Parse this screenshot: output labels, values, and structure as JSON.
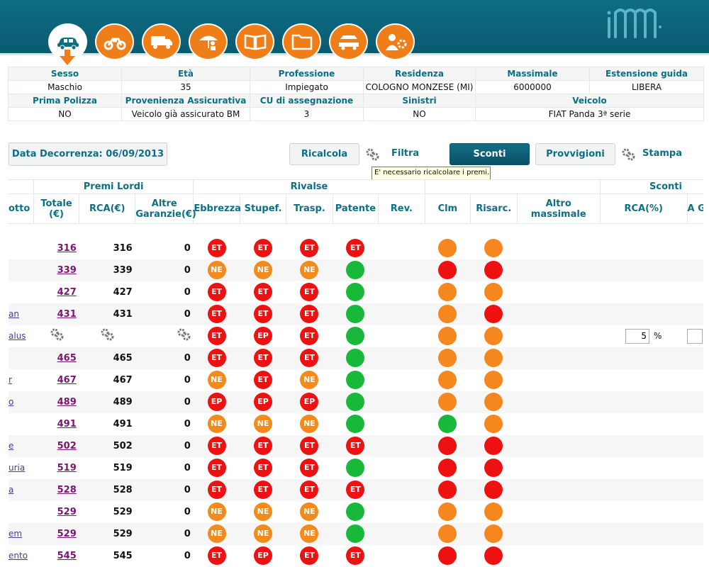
{
  "colors": {
    "teal": "#0d6f84",
    "nav_orange": "#ef7d18",
    "ET": "#ee1111",
    "EP": "#ee1111",
    "NE": "#f38a1c",
    "red": "#ee1111",
    "orange": "#f6871f",
    "green": "#18b93a"
  },
  "nav": {
    "icons": [
      "car-icon",
      "motorcycle-icon",
      "truck-icon",
      "umbrella-person-icon",
      "book-icon",
      "folder-icon",
      "vehicles-icon",
      "person-settings-icon"
    ],
    "active_index": 0
  },
  "info": {
    "row1_headers": [
      "Sesso",
      "Età",
      "Professione",
      "Residenza",
      "Massimale",
      "Estensione guida"
    ],
    "row1_values": [
      "Maschio",
      "35",
      "Impiegato",
      "COLOGNO MONZESE (MI)",
      "6000000",
      "LIBERA"
    ],
    "row2_headers": [
      "Prima Polizza",
      "Provenienza Assicurativa",
      "CU di assegnazione",
      "Sinistri",
      "Veicolo"
    ],
    "row2_values": [
      "NO",
      "Veicolo già assicurato BM",
      "3",
      "NO",
      "FIAT Panda 3ª serie"
    ]
  },
  "toolbar": {
    "date_label": "Data Decorrenza: 06/09/2013",
    "ricalcola": "Ricalcola",
    "filtra": "Filtra",
    "sconti": "Sconti",
    "provvigioni": "Provvigioni",
    "stampa": "Stampa",
    "tooltip": "E' necessario ricalcolare i premi..."
  },
  "grid": {
    "group_premi": "Premi Lordi",
    "group_rivalse": "Rivalse",
    "group_sconti": "Sconti",
    "h_prodotto": "otto",
    "h_totale": "Totale (€)",
    "h_rca": "RCA(€)",
    "h_altre": "Altre Garanzie(€)",
    "h_ebbrezza": "Ebbrezza",
    "h_stupef": "Stupef.",
    "h_trasp": "Trasp.",
    "h_patente": "Patente",
    "h_rev": "Rev.",
    "h_clm": "Clm",
    "h_risarc": "Risarc.",
    "h_altro": "Altro massimale",
    "h_sconto_rca": "RCA(%)",
    "h_sconto_altre": "A Garan",
    "pct_value": "5",
    "pct_sign": "%",
    "rows": [
      {
        "name": "",
        "tot": "316",
        "rca": "316",
        "alt": "0",
        "e": "ET",
        "s": "ET",
        "t": "ET",
        "p": "ET",
        "clm": "orange",
        "ris": "orange",
        "gear": false
      },
      {
        "name": "",
        "tot": "339",
        "rca": "339",
        "alt": "0",
        "e": "NE",
        "s": "NE",
        "t": "NE",
        "p": "green",
        "clm": "red",
        "ris": "red",
        "gear": false
      },
      {
        "name": "",
        "tot": "427",
        "rca": "427",
        "alt": "0",
        "e": "ET",
        "s": "ET",
        "t": "ET",
        "p": "green",
        "clm": "orange",
        "ris": "orange",
        "gear": false
      },
      {
        "name": "an",
        "tot": "431",
        "rca": "431",
        "alt": "0",
        "e": "ET",
        "s": "ET",
        "t": "ET",
        "p": "green",
        "clm": "orange",
        "ris": "red",
        "gear": false
      },
      {
        "name": "alus",
        "tot": "",
        "rca": "",
        "alt": "",
        "e": "ET",
        "s": "EP",
        "t": "ET",
        "p": "green",
        "clm": "orange",
        "ris": "orange",
        "gear": true
      },
      {
        "name": "",
        "tot": "465",
        "rca": "465",
        "alt": "0",
        "e": "ET",
        "s": "ET",
        "t": "ET",
        "p": "green",
        "clm": "orange",
        "ris": "orange",
        "gear": false
      },
      {
        "name": "r",
        "tot": "467",
        "rca": "467",
        "alt": "0",
        "e": "NE",
        "s": "ET",
        "t": "NE",
        "p": "green",
        "clm": "orange",
        "ris": "orange",
        "gear": false
      },
      {
        "name": "o",
        "tot": "489",
        "rca": "489",
        "alt": "0",
        "e": "EP",
        "s": "EP",
        "t": "EP",
        "p": "green",
        "clm": "orange",
        "ris": "orange",
        "gear": false
      },
      {
        "name": "",
        "tot": "491",
        "rca": "491",
        "alt": "0",
        "e": "NE",
        "s": "NE",
        "t": "NE",
        "p": "green",
        "clm": "green",
        "ris": "orange",
        "gear": false
      },
      {
        "name": "e",
        "tot": "502",
        "rca": "502",
        "alt": "0",
        "e": "ET",
        "s": "ET",
        "t": "ET",
        "p": "ET",
        "clm": "red",
        "ris": "red",
        "gear": false
      },
      {
        "name": "uria",
        "tot": "519",
        "rca": "519",
        "alt": "0",
        "e": "ET",
        "s": "ET",
        "t": "ET",
        "p": "green",
        "clm": "red",
        "ris": "red",
        "gear": false
      },
      {
        "name": "a",
        "tot": "528",
        "rca": "528",
        "alt": "0",
        "e": "ET",
        "s": "ET",
        "t": "ET",
        "p": "ET",
        "clm": "red",
        "ris": "red",
        "gear": false
      },
      {
        "name": "",
        "tot": "529",
        "rca": "529",
        "alt": "0",
        "e": "NE",
        "s": "NE",
        "t": "NE",
        "p": "green",
        "clm": "orange",
        "ris": "orange",
        "gear": false
      },
      {
        "name": "em",
        "tot": "529",
        "rca": "529",
        "alt": "0",
        "e": "NE",
        "s": "NE",
        "t": "NE",
        "p": "green",
        "clm": "orange",
        "ris": "orange",
        "gear": false
      },
      {
        "name": "ento",
        "tot": "545",
        "rca": "545",
        "alt": "0",
        "e": "ET",
        "s": "EP",
        "t": "ET",
        "p": "ET",
        "clm": "red",
        "ris": "red",
        "gear": false
      }
    ]
  }
}
